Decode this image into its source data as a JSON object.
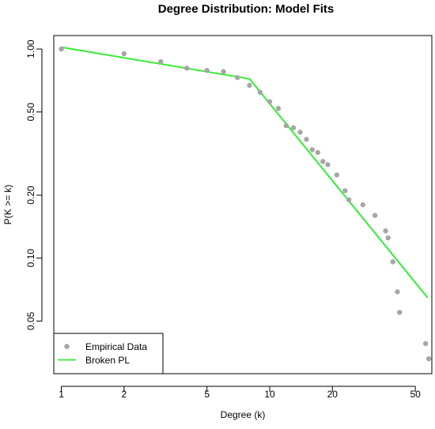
{
  "chart_data": {
    "type": "scatter",
    "title": "Degree Distribution: Model Fits",
    "xlabel": "Degree (k)",
    "ylabel": "P(K >= k)",
    "x_scale": "log",
    "y_scale": "log",
    "xlim": [
      0.92,
      60
    ],
    "ylim": [
      0.028,
      1.16
    ],
    "x_ticks": [
      {
        "value": 1,
        "label": "1"
      },
      {
        "value": 2,
        "label": "2"
      },
      {
        "value": 5,
        "label": "5"
      },
      {
        "value": 10,
        "label": "10"
      },
      {
        "value": 20,
        "label": "20"
      },
      {
        "value": 50,
        "label": "50"
      }
    ],
    "y_ticks": [
      {
        "value": 0.05,
        "label": "0.05"
      },
      {
        "value": 0.1,
        "label": "0.10"
      },
      {
        "value": 0.2,
        "label": "0.20"
      },
      {
        "value": 0.5,
        "label": "0.50"
      },
      {
        "value": 1.0,
        "label": "1.00"
      }
    ],
    "grid": false,
    "legend_position": "bottom-left",
    "series": [
      {
        "name": "Empirical Data",
        "kind": "points",
        "color": "#a6a6a6",
        "points": [
          [
            1,
            1.0
          ],
          [
            2,
            0.95
          ],
          [
            3,
            0.87
          ],
          [
            4,
            0.81
          ],
          [
            5,
            0.79
          ],
          [
            6,
            0.78
          ],
          [
            7,
            0.73
          ],
          [
            8,
            0.67
          ],
          [
            9,
            0.62
          ],
          [
            10,
            0.56
          ],
          [
            11,
            0.52
          ],
          [
            12,
            0.43
          ],
          [
            13,
            0.42
          ],
          [
            14,
            0.4
          ],
          [
            15,
            0.37
          ],
          [
            16,
            0.33
          ],
          [
            17,
            0.32
          ],
          [
            18,
            0.29
          ],
          [
            19,
            0.28
          ],
          [
            21,
            0.25
          ],
          [
            23,
            0.21
          ],
          [
            24,
            0.19
          ],
          [
            28,
            0.18
          ],
          [
            32,
            0.16
          ],
          [
            36,
            0.135
          ],
          [
            37,
            0.125
          ],
          [
            39,
            0.096
          ],
          [
            41,
            0.069
          ],
          [
            42,
            0.055
          ],
          [
            56,
            0.039
          ],
          [
            58,
            0.033
          ]
        ]
      },
      {
        "name": "Broken PL",
        "kind": "line",
        "color": "#33ee33",
        "points": [
          [
            1,
            1.02
          ],
          [
            8,
            0.72
          ],
          [
            57,
            0.065
          ]
        ]
      }
    ]
  }
}
